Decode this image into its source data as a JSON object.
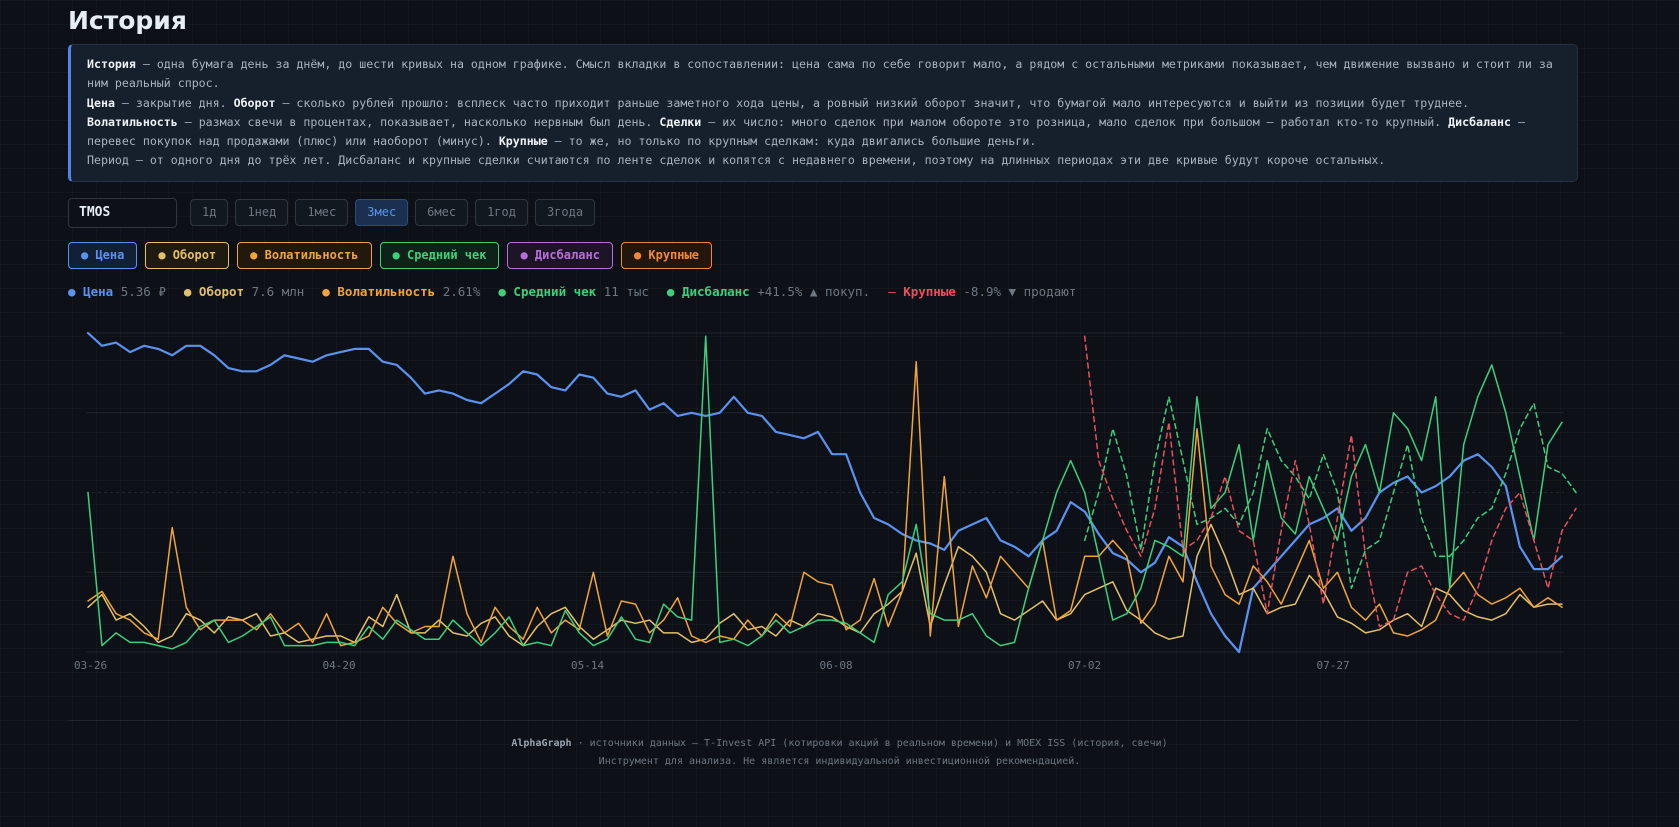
{
  "title": "История",
  "info": {
    "p1_b1": "История",
    "p1_t1": " — одна бумага день за днём, до шести кривых на одном графике. Смысл вкладки в сопоставлении: цена сама по себе говорит мало, а рядом с остальными метриками показывает, чем движение вызвано и стоит ли за ним реальный спрос.",
    "p2_b1": "Цена",
    "p2_t1": " — закрытие дня. ",
    "p2_b2": "Оборот",
    "p2_t2": " — сколько рублей прошло: всплеск часто приходит раньше заметного хода цены, а ровный низкий оборот значит, что бумагой мало интересуются и выйти из позиции будет труднее.",
    "p3_b1": "Волатильность",
    "p3_t1": " — размах свечи в процентах, показывает, насколько нервным был день. ",
    "p3_b2": "Сделки",
    "p3_t2": " — их число: много сделок при малом обороте это розница, мало сделок при большом — работал кто-то крупный. ",
    "p3_b3": "Дисбаланс",
    "p3_t3": " — перевес покупок над продажами (плюс) или наоборот (минус). ",
    "p3_b4": "Крупные",
    "p3_t4": " — то же, но только по крупным сделкам: куда двигались большие деньги.",
    "p4": "Период — от одного дня до трёх лет. Дисбаланс и крупные сделки считаются по ленте сделок и копятся с недавнего времени, поэтому на длинных периодах эти две кривые будут короче остальных."
  },
  "ticker": "TMOS",
  "periods": [
    "1д",
    "1нед",
    "1мес",
    "3мес",
    "6мес",
    "1год",
    "3года"
  ],
  "active_period": "3мес",
  "toggles": [
    {
      "label": "● Цена",
      "color": "#5b92f0",
      "bg": "#122036"
    },
    {
      "label": "● Оборот",
      "color": "#e5c06a",
      "bg": "#1f1b10"
    },
    {
      "label": "● Волатильность",
      "color": "#f0a43a",
      "bg": "#22190c"
    },
    {
      "label": "● Средний чек",
      "color": "#3ecf7c",
      "bg": "#0f2219"
    },
    {
      "label": "● Дисбаланс",
      "color": "#b46fd8",
      "bg": "#1e1428"
    },
    {
      "label": "● Крупные",
      "color": "#f08a3a",
      "bg": "#23170d"
    }
  ],
  "legend": [
    {
      "bullet": "●",
      "name": "Цена",
      "value": "5.36 ₽",
      "color": "#5b92f0"
    },
    {
      "bullet": "●",
      "name": "Оборот",
      "value": "7.6 млн",
      "color": "#e5c06a"
    },
    {
      "bullet": "●",
      "name": "Волатильность",
      "value": "2.61%",
      "color": "#f0a43a"
    },
    {
      "bullet": "●",
      "name": "Средний чек",
      "value": "11 тыс",
      "color": "#3ecf7c"
    },
    {
      "bullet": "●",
      "name": "Дисбаланс",
      "value": "+41.5% ▲ покуп.",
      "color": "#3ecf7c"
    },
    {
      "bullet": "—",
      "name": "Крупные",
      "value": "-8.9% ▼ продают",
      "color": "#e8505b"
    }
  ],
  "chart_data": {
    "type": "line",
    "x_ticks": [
      "03-26",
      "04-20",
      "05-14",
      "06-08",
      "07-02",
      "07-27"
    ],
    "y_range": [
      0,
      1
    ],
    "grid": true,
    "series": [
      {
        "name": "Цена",
        "color": "#5b92f0",
        "dashed": false,
        "start": 0,
        "values": [
          1.0,
          0.96,
          0.97,
          0.94,
          0.96,
          0.95,
          0.93,
          0.96,
          0.96,
          0.93,
          0.89,
          0.88,
          0.88,
          0.9,
          0.93,
          0.92,
          0.91,
          0.93,
          0.94,
          0.95,
          0.95,
          0.91,
          0.9,
          0.86,
          0.81,
          0.82,
          0.81,
          0.79,
          0.78,
          0.81,
          0.84,
          0.88,
          0.87,
          0.83,
          0.82,
          0.87,
          0.86,
          0.81,
          0.8,
          0.82,
          0.76,
          0.78,
          0.74,
          0.75,
          0.74,
          0.75,
          0.8,
          0.75,
          0.74,
          0.69,
          0.68,
          0.67,
          0.69,
          0.62,
          0.62,
          0.5,
          0.42,
          0.4,
          0.37,
          0.35,
          0.34,
          0.32,
          0.38,
          0.4,
          0.42,
          0.35,
          0.33,
          0.3,
          0.35,
          0.38,
          0.47,
          0.44,
          0.37,
          0.31,
          0.29,
          0.25,
          0.28,
          0.36,
          0.33,
          0.22,
          0.12,
          0.05,
          0.0,
          0.2,
          0.25,
          0.3,
          0.35,
          0.4,
          0.42,
          0.45,
          0.38,
          0.42,
          0.5,
          0.53,
          0.55,
          0.5,
          0.52,
          0.55,
          0.6,
          0.62,
          0.58,
          0.52,
          0.33,
          0.26,
          0.26,
          0.3
        ]
      },
      {
        "name": "Оборот",
        "color": "#e5c06a",
        "dashed": false,
        "start": 0,
        "values": [
          0.14,
          0.18,
          0.1,
          0.12,
          0.08,
          0.03,
          0.05,
          0.12,
          0.1,
          0.06,
          0.11,
          0.1,
          0.12,
          0.05,
          0.06,
          0.03,
          0.04,
          0.05,
          0.05,
          0.03,
          0.11,
          0.08,
          0.18,
          0.06,
          0.06,
          0.1,
          0.06,
          0.05,
          0.09,
          0.11,
          0.05,
          0.02,
          0.08,
          0.12,
          0.14,
          0.08,
          0.04,
          0.07,
          0.1,
          0.09,
          0.1,
          0.06,
          0.06,
          0.03,
          0.04,
          0.09,
          0.12,
          0.07,
          0.08,
          0.05,
          0.1,
          0.08,
          0.12,
          0.11,
          0.08,
          0.06,
          0.12,
          0.15,
          0.19,
          0.31,
          0.08,
          0.21,
          0.33,
          0.3,
          0.25,
          0.12,
          0.1,
          0.13,
          0.16,
          0.1,
          0.12,
          0.18,
          0.2,
          0.22,
          0.13,
          0.1,
          0.06,
          0.04,
          0.05,
          0.3,
          0.4,
          0.3,
          0.18,
          0.2,
          0.12,
          0.14,
          0.15,
          0.24,
          0.19,
          0.11,
          0.09,
          0.06,
          0.07,
          0.1,
          0.12,
          0.08,
          0.2,
          0.18,
          0.13,
          0.11,
          0.1,
          0.12,
          0.18,
          0.14,
          0.15,
          0.15
        ]
      },
      {
        "name": "Волатильность",
        "color": "#f0a43a",
        "dashed": false,
        "start": 0,
        "values": [
          0.16,
          0.19,
          0.12,
          0.1,
          0.06,
          0.04,
          0.39,
          0.14,
          0.07,
          0.1,
          0.1,
          0.1,
          0.07,
          0.12,
          0.06,
          0.09,
          0.03,
          0.12,
          0.02,
          0.03,
          0.05,
          0.14,
          0.09,
          0.06,
          0.08,
          0.08,
          0.3,
          0.12,
          0.03,
          0.14,
          0.08,
          0.04,
          0.14,
          0.06,
          0.1,
          0.07,
          0.25,
          0.05,
          0.16,
          0.15,
          0.06,
          0.1,
          0.17,
          0.05,
          0.03,
          0.05,
          0.04,
          0.1,
          0.05,
          0.12,
          0.08,
          0.25,
          0.22,
          0.21,
          0.07,
          0.1,
          0.23,
          0.08,
          0.19,
          0.91,
          0.05,
          0.55,
          0.08,
          0.27,
          0.17,
          0.3,
          0.25,
          0.2,
          0.35,
          0.1,
          0.13,
          0.3,
          0.3,
          0.35,
          0.3,
          0.09,
          0.15,
          0.3,
          0.22,
          0.7,
          0.27,
          0.18,
          0.15,
          0.27,
          0.22,
          0.15,
          0.25,
          0.35,
          0.2,
          0.25,
          0.14,
          0.1,
          0.15,
          0.06,
          0.05,
          0.07,
          0.1,
          0.2,
          0.25,
          0.18,
          0.15,
          0.17,
          0.2,
          0.14,
          0.17,
          0.14
        ]
      },
      {
        "name": "Средний чек",
        "color": "#3ecf7c",
        "dashed": false,
        "start": 0,
        "values": [
          0.5,
          0.02,
          0.06,
          0.03,
          0.03,
          0.02,
          0.01,
          0.03,
          0.08,
          0.1,
          0.03,
          0.05,
          0.08,
          0.11,
          0.02,
          0.02,
          0.02,
          0.03,
          0.03,
          0.02,
          0.08,
          0.04,
          0.1,
          0.07,
          0.04,
          0.04,
          0.1,
          0.06,
          0.02,
          0.06,
          0.11,
          0.02,
          0.03,
          0.02,
          0.13,
          0.06,
          0.02,
          0.04,
          0.11,
          0.04,
          0.03,
          0.15,
          0.11,
          0.1,
          0.99,
          0.03,
          0.04,
          0.02,
          0.05,
          0.1,
          0.06,
          0.08,
          0.1,
          0.1,
          0.09,
          0.06,
          0.03,
          0.18,
          0.22,
          0.4,
          0.12,
          0.1,
          0.1,
          0.12,
          0.05,
          0.02,
          0.03,
          0.2,
          0.35,
          0.5,
          0.6,
          0.5,
          0.3,
          0.1,
          0.12,
          0.2,
          0.35,
          0.33,
          0.3,
          0.8,
          0.45,
          0.5,
          0.65,
          0.35,
          0.6,
          0.42,
          0.37,
          0.55,
          0.45,
          0.35,
          0.55,
          0.65,
          0.5,
          0.75,
          0.7,
          0.6,
          0.8,
          0.2,
          0.65,
          0.8,
          0.9,
          0.75,
          0.55,
          0.35,
          0.65,
          0.72
        ]
      },
      {
        "name": "Дисбаланс",
        "color": "#3ecf7c",
        "dashed": true,
        "start": 71,
        "values": [
          0.35,
          0.5,
          0.7,
          0.55,
          0.32,
          0.6,
          0.8,
          0.6,
          0.4,
          0.42,
          0.45,
          0.4,
          0.5,
          0.7,
          0.6,
          0.55,
          0.48,
          0.62,
          0.5,
          0.2,
          0.32,
          0.35,
          0.5,
          0.65,
          0.42,
          0.3,
          0.3,
          0.35,
          0.42,
          0.45,
          0.56,
          0.7,
          0.78,
          0.58,
          0.56,
          0.5
        ]
      },
      {
        "name": "Крупные",
        "color": "#e8505b",
        "dashed": true,
        "start": 71,
        "values": [
          0.99,
          0.6,
          0.48,
          0.38,
          0.3,
          0.45,
          0.72,
          0.32,
          0.35,
          0.42,
          0.55,
          0.38,
          0.35,
          0.12,
          0.38,
          0.6,
          0.4,
          0.15,
          0.42,
          0.68,
          0.3,
          0.08,
          0.1,
          0.25,
          0.27,
          0.18,
          0.12,
          0.1,
          0.2,
          0.35,
          0.45,
          0.5,
          0.35,
          0.2,
          0.38,
          0.45
        ]
      }
    ]
  },
  "footer": {
    "brand": "AlphaGraph",
    "sources": " · источники данных — T-Invest API (котировки акций в реальном времени) и MOEX ISS (история, свечи)",
    "disclaimer": "Инструмент для анализа. Не является индивидуальной инвестиционной рекомендацией."
  }
}
